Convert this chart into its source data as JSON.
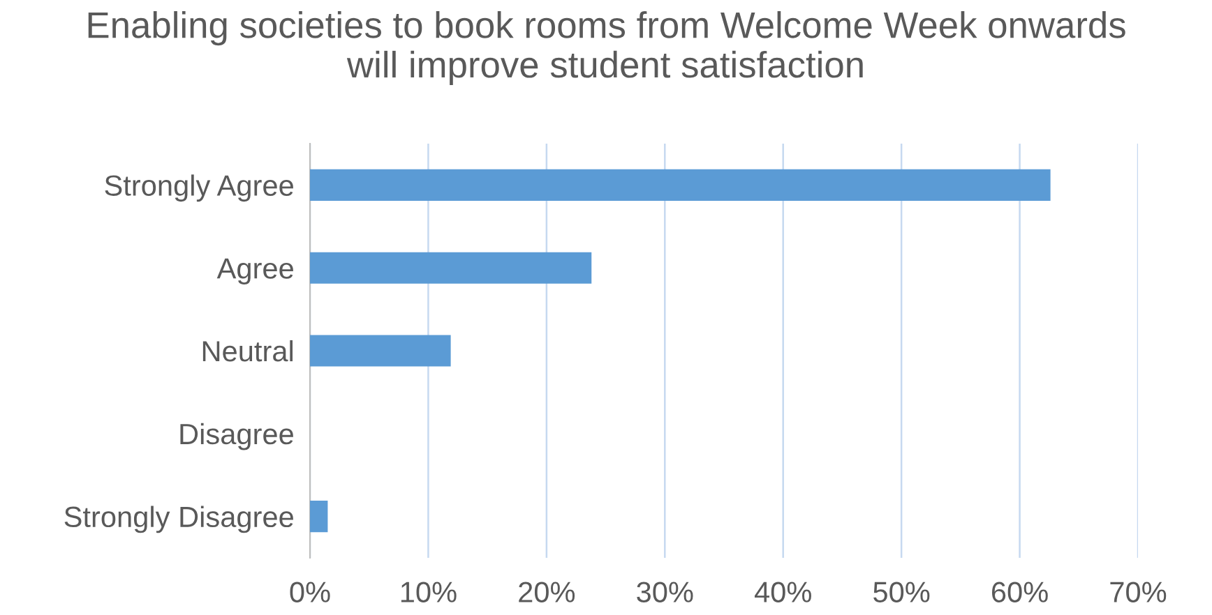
{
  "chart_data": {
    "type": "bar",
    "orientation": "horizontal",
    "title": "Enabling societies to book rooms from Welcome Week onwards will improve student satisfaction",
    "categories": [
      "Strongly Agree",
      "Agree",
      "Neutral",
      "Disagree",
      "Strongly Disagree"
    ],
    "values": [
      62.6,
      23.8,
      11.9,
      0,
      1.5
    ],
    "color": "#5b9bd5",
    "xlim": [
      0,
      70
    ],
    "xticks": [
      {
        "value": 0,
        "label": "0%"
      },
      {
        "value": 10,
        "label": "10%"
      },
      {
        "value": 20,
        "label": "20%"
      },
      {
        "value": 30,
        "label": "30%"
      },
      {
        "value": 40,
        "label": "40%"
      },
      {
        "value": 50,
        "label": "50%"
      },
      {
        "value": 60,
        "label": "60%"
      },
      {
        "value": 70,
        "label": "70%"
      }
    ],
    "grid": "x",
    "legend": false
  }
}
